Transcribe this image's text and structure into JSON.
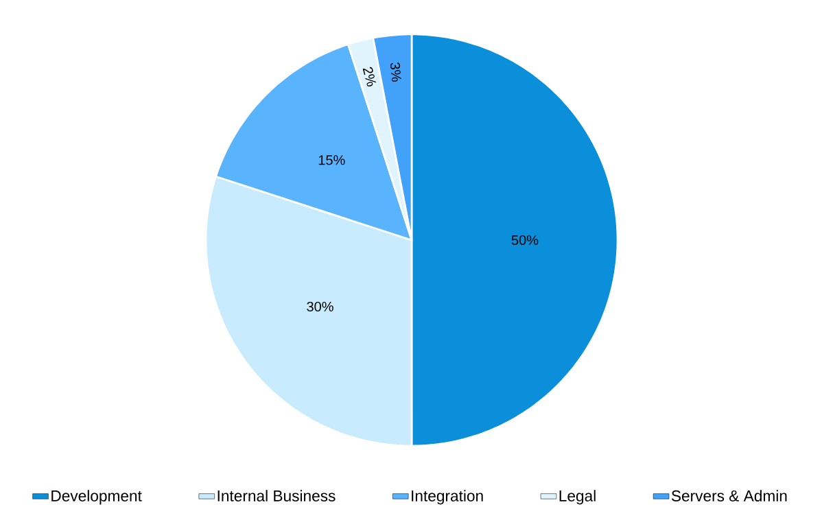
{
  "chart_data": {
    "type": "pie",
    "categories": [
      "Development",
      "Internal Business",
      "Integration",
      "Legal",
      "Servers & Admin"
    ],
    "values": [
      50,
      30,
      15,
      2,
      3
    ],
    "colors": [
      "#0b8fda",
      "#c8ebfd",
      "#5ab4fd",
      "#e0f4fe",
      "#42a2fa"
    ],
    "value_labels": [
      "50%",
      "30%",
      "15%",
      "2%",
      "3%"
    ],
    "legend": "bottom"
  }
}
